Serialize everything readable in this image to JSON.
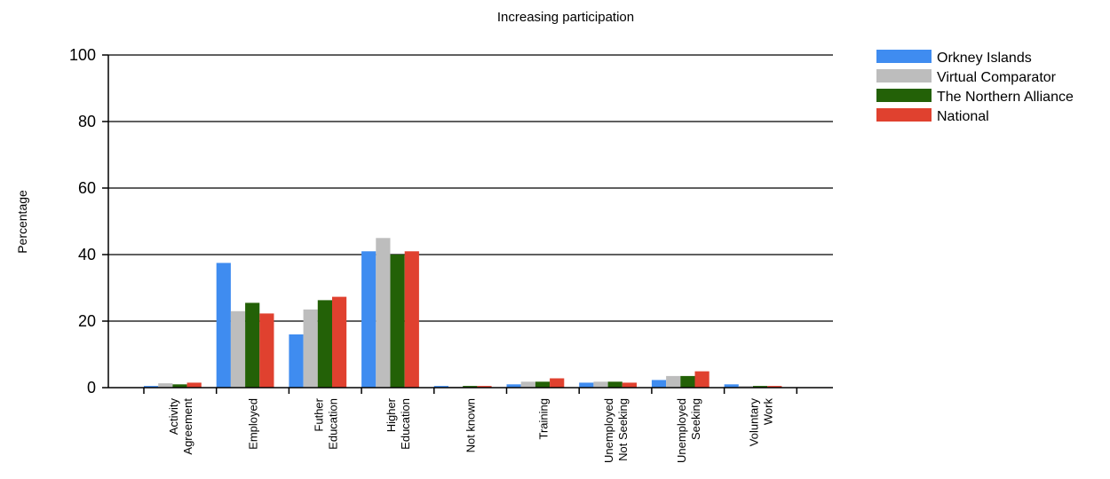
{
  "chart_data": {
    "type": "bar",
    "title": "Increasing participation",
    "ylabel": "Percentage",
    "xlabel": "",
    "ylim": [
      0,
      100
    ],
    "yticks": [
      0,
      20,
      40,
      60,
      80,
      100
    ],
    "grid": true,
    "legend_position": "top-right",
    "categories": [
      [
        "Activity",
        "Agreement"
      ],
      [
        "Employed"
      ],
      [
        "Futher",
        "Education"
      ],
      [
        "Higher",
        "Education"
      ],
      [
        "Not known"
      ],
      [
        "Training"
      ],
      [
        "Unemployed",
        "Not Seeking"
      ],
      [
        "Unemployed",
        "Seeking"
      ],
      [
        "Voluntary",
        "Work"
      ]
    ],
    "series": [
      {
        "name": "Orkney Islands",
        "color": "#3f8cf0",
        "values": [
          0.5,
          37.5,
          16,
          41,
          0.5,
          1,
          1.5,
          2.3,
          1
        ]
      },
      {
        "name": "Virtual Comparator",
        "color": "#bdbdbd",
        "values": [
          1.3,
          23,
          23.5,
          45,
          0.3,
          1.8,
          1.8,
          3.5,
          0.5
        ]
      },
      {
        "name": "The Northern Alliance",
        "color": "#236107",
        "values": [
          1,
          25.5,
          26.3,
          40,
          0.5,
          1.8,
          1.8,
          3.5,
          0.5
        ]
      },
      {
        "name": "National",
        "color": "#e0412f",
        "values": [
          1.5,
          22.3,
          27.3,
          41,
          0.5,
          2.8,
          1.5,
          4.9,
          0.5
        ]
      }
    ]
  }
}
